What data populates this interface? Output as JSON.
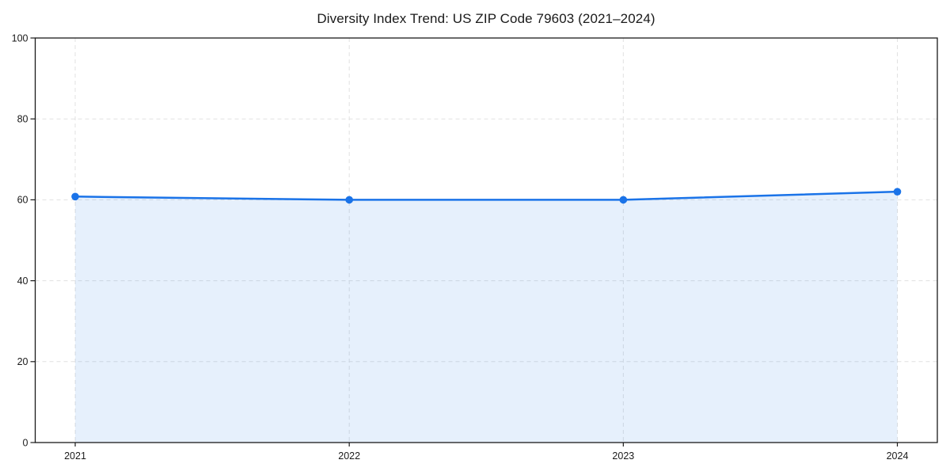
{
  "title": "Diversity Index Trend: US ZIP Code 79603 (2021–2024)",
  "chart_data": {
    "type": "area",
    "title": "Diversity Index Trend: US ZIP Code 79603 (2021–2024)",
    "categories": [
      "2021",
      "2022",
      "2023",
      "2024"
    ],
    "series": [
      {
        "name": "Diversity Index",
        "values": [
          60.8,
          60.0,
          60.0,
          62.0
        ]
      }
    ],
    "xlabel": "",
    "ylabel": "",
    "ylim": [
      0,
      100
    ],
    "yticks": [
      0,
      20,
      40,
      60,
      80,
      100
    ],
    "grid": true,
    "grid_style": "dashed",
    "legend": "none",
    "marker": "circle",
    "colors": {
      "line": "#1a73e8",
      "marker": "#1a73e8",
      "fill": "rgba(26,115,232,0.11)",
      "grid": "#e1e1e1",
      "axis": "#1a1a1a",
      "text": "#1a1a1a",
      "background": "#ffffff"
    }
  }
}
